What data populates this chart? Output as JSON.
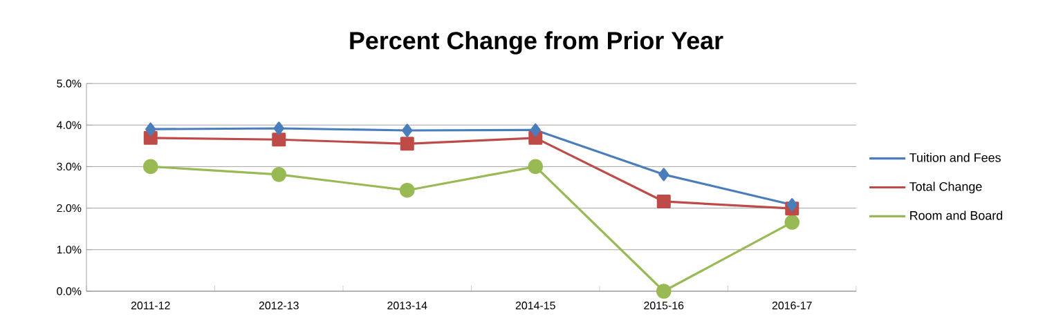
{
  "chart_data": {
    "type": "line",
    "title": "Percent Change from Prior Year",
    "categories": [
      "2011-12",
      "2012-13",
      "2013-14",
      "2014-15",
      "2015-16",
      "2016-17"
    ],
    "series": [
      {
        "name": "Tuition and Fees",
        "color": "#4a7ebb",
        "marker": "diamond",
        "values": [
          3.9,
          3.92,
          3.87,
          3.88,
          2.81,
          2.08
        ]
      },
      {
        "name": "Total Change",
        "color": "#be4b48",
        "marker": "square",
        "values": [
          3.69,
          3.65,
          3.55,
          3.69,
          2.16,
          1.99
        ]
      },
      {
        "name": "Room and Board",
        "color": "#98b954",
        "marker": "circle",
        "values": [
          3.0,
          2.81,
          2.43,
          3.0,
          0.0,
          1.66
        ]
      }
    ],
    "ylim": [
      0,
      5
    ],
    "yticks": [
      {
        "value": 0,
        "label": "0.0%"
      },
      {
        "value": 1,
        "label": "1.0%"
      },
      {
        "value": 2,
        "label": "2.0%"
      },
      {
        "value": 3,
        "label": "3.0%"
      },
      {
        "value": 4,
        "label": "4.0%"
      },
      {
        "value": 5,
        "label": "5.0%"
      }
    ],
    "grid": "y",
    "legend": "right",
    "line_style": "solid"
  }
}
